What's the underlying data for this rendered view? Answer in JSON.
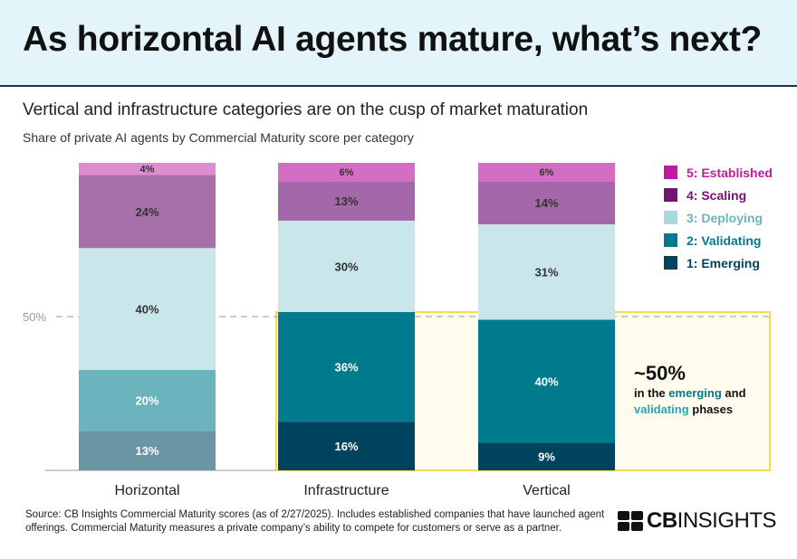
{
  "header": {
    "title": "As horizontal AI agents mature, what’s next?"
  },
  "subtitle": "Vertical and infrastructure categories are on the cusp of market maturation",
  "chart_data": {
    "type": "bar",
    "stacked": true,
    "title": "Share of private AI agents by Commercial Maturity score per category",
    "categories": [
      "Horizontal",
      "Infrastructure",
      "Vertical"
    ],
    "series": [
      {
        "name": "1: Emerging",
        "values": [
          13,
          16,
          9
        ],
        "color": "#00435f",
        "faded": "#6b94a5"
      },
      {
        "name": "2: Validating",
        "values": [
          20,
          36,
          40
        ],
        "color": "#007a8d",
        "faded": "#6bb3bd"
      },
      {
        "name": "3: Deploying",
        "values": [
          40,
          30,
          31
        ],
        "color": "#c9e6eb",
        "faded": "#c9e6eb"
      },
      {
        "name": "4: Scaling",
        "values": [
          24,
          13,
          14
        ],
        "color": "#a468aa",
        "faded": "#a870a9"
      },
      {
        "name": "5: Established",
        "values": [
          4,
          6,
          6
        ],
        "color": "#d36ec4",
        "faded": "#dc8ccf"
      }
    ],
    "legend_order": [
      "5: Established",
      "4: Scaling",
      "3: Deploying",
      "2: Validating",
      "1: Emerging"
    ],
    "legend_colors": {
      "5: Established": "#c1199f",
      "4: Scaling": "#73156f",
      "3: Deploying": "#a9d9e0",
      "2: Validating": "#007a8d",
      "1: Emerging": "#00435f"
    },
    "legend_text_colors": {
      "5: Established": "#c1199f",
      "4: Scaling": "#73156f",
      "3: Deploying": "#6fb3be",
      "2: Validating": "#007a8d",
      "1: Emerging": "#00435f"
    },
    "reference_line": {
      "value": 50,
      "label": "50%"
    },
    "highlight_color": "#f5da55",
    "legend_position": "top-right",
    "ylim": [
      0,
      100
    ]
  },
  "note": {
    "big": "~50%",
    "line1_pre": "in the ",
    "emerging": "emerging",
    "line1_post": " and",
    "validating": "validating",
    "line2_post": " phases"
  },
  "source": "Source: CB Insights Commercial Maturity scores (as of 2/27/2025). Includes established companies that have launched agent offerings. Commercial Maturity measures a private company’s ability to compete for customers or serve as a partner.",
  "logo": {
    "cb": "CB",
    "insights": "INSIGHTS"
  }
}
